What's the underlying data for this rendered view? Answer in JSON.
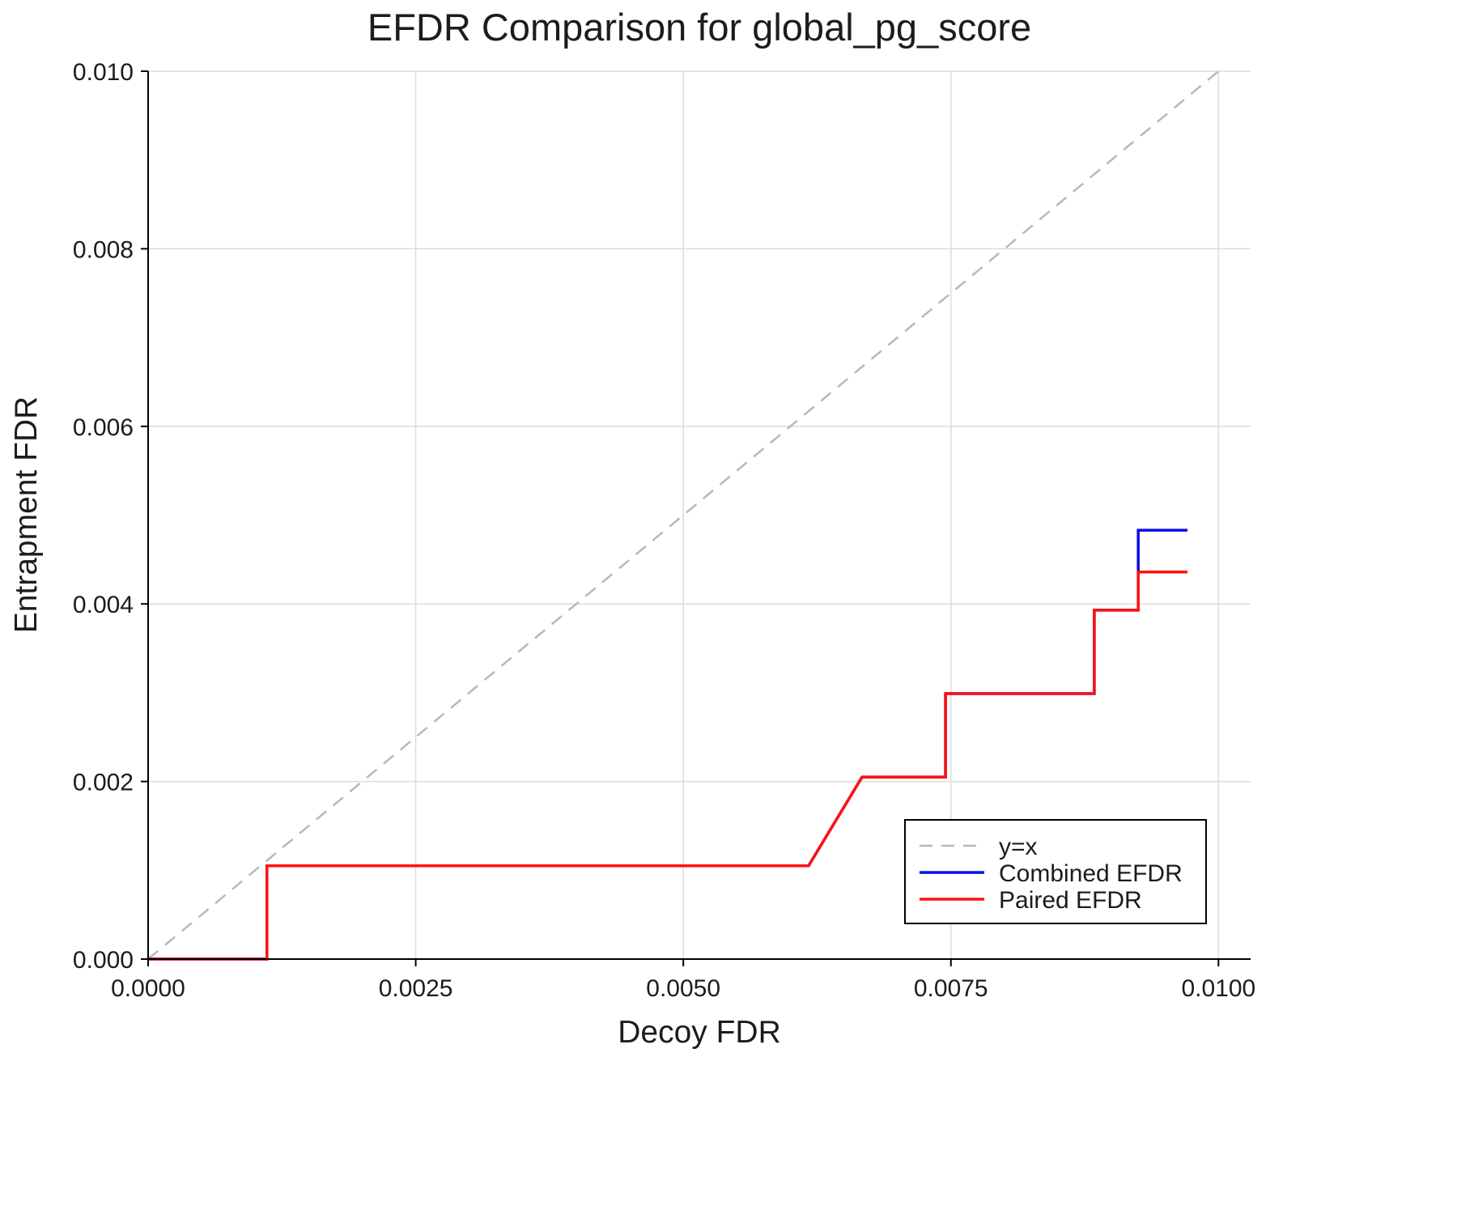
{
  "chart_data": {
    "type": "line",
    "title": "EFDR Comparison for global_pg_score",
    "xlabel": "Decoy FDR",
    "ylabel": "Entrapment FDR",
    "xlim": [
      0.0,
      0.0103
    ],
    "ylim": [
      0.0,
      0.01
    ],
    "grid": true,
    "legend_position": "lower right",
    "xticks": [
      0.0,
      0.0025,
      0.005,
      0.0075,
      0.01
    ],
    "xtick_labels": [
      "0.0000",
      "0.0025",
      "0.0050",
      "0.0075",
      "0.0100"
    ],
    "yticks": [
      0.0,
      0.002,
      0.004,
      0.006,
      0.008,
      0.01
    ],
    "ytick_labels": [
      "0.000",
      "0.002",
      "0.004",
      "0.006",
      "0.008",
      "0.010"
    ],
    "style": {
      "grid_color": "#dcdcdc",
      "axis_color": "#000000",
      "background": "#ffffff",
      "legend_border": "#000000"
    },
    "series": [
      {
        "name": "y=x",
        "color": "#b8b8b8",
        "dash": "16 11",
        "width": 2.5,
        "points": [
          [
            0.0,
            0.0
          ],
          [
            0.01,
            0.01
          ]
        ]
      },
      {
        "name": "Combined EFDR",
        "color": "#0a0aee",
        "dash": null,
        "width": 3.5,
        "points": [
          [
            0.0,
            0.0
          ],
          [
            0.00111,
            0.0
          ],
          [
            0.00111,
            0.00105
          ],
          [
            0.00617,
            0.00105
          ],
          [
            0.00667,
            0.00205
          ],
          [
            0.00745,
            0.00205
          ],
          [
            0.00745,
            0.00299
          ],
          [
            0.00884,
            0.00299
          ],
          [
            0.00884,
            0.00393
          ],
          [
            0.00925,
            0.00393
          ],
          [
            0.00925,
            0.00483
          ],
          [
            0.00971,
            0.00483
          ]
        ]
      },
      {
        "name": "Paired EFDR",
        "color": "#ff1211",
        "dash": null,
        "width": 3.5,
        "points": [
          [
            0.0,
            0.0
          ],
          [
            0.00111,
            0.0
          ],
          [
            0.00111,
            0.00105
          ],
          [
            0.00617,
            0.00105
          ],
          [
            0.00667,
            0.00205
          ],
          [
            0.00745,
            0.00205
          ],
          [
            0.00745,
            0.00299
          ],
          [
            0.00884,
            0.00299
          ],
          [
            0.00884,
            0.00393
          ],
          [
            0.00925,
            0.00393
          ],
          [
            0.00925,
            0.00436
          ],
          [
            0.00971,
            0.00436
          ]
        ]
      }
    ]
  }
}
